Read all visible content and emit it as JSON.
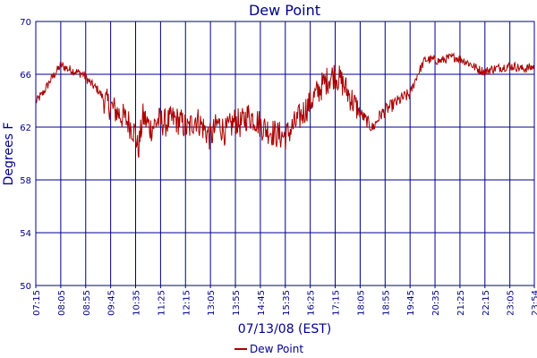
{
  "chart_data": {
    "type": "line",
    "title": "Dew Point",
    "xlabel": "07/13/08 (EST)",
    "ylabel": "Degrees F",
    "ylim": [
      50,
      70
    ],
    "yticks": [
      "50",
      "54",
      "58",
      "62",
      "66",
      "70"
    ],
    "xlim": [
      "07:15",
      "23:54"
    ],
    "xticks": [
      "07:15",
      "08:05",
      "08:55",
      "09:45",
      "10:35",
      "11:25",
      "12:15",
      "13:05",
      "13:55",
      "14:45",
      "15:35",
      "16:25",
      "17:15",
      "18:05",
      "18:55",
      "19:45",
      "20:35",
      "21:25",
      "22:15",
      "23:05",
      "23:54"
    ],
    "grid": true,
    "legend": "bottom-center",
    "colors": {
      "series": "#aa0000",
      "grid": "#00008b",
      "frame": "#00008b",
      "text": "#00008b"
    },
    "series": [
      {
        "name": "Dew Point",
        "x": [
          "07:15",
          "07:30",
          "07:45",
          "08:00",
          "08:05",
          "08:20",
          "08:35",
          "08:50",
          "09:05",
          "09:20",
          "09:35",
          "09:50",
          "10:05",
          "10:20",
          "10:35",
          "10:40",
          "10:50",
          "11:05",
          "11:20",
          "11:35",
          "11:50",
          "12:05",
          "12:20",
          "12:35",
          "12:50",
          "13:05",
          "13:20",
          "13:35",
          "13:55",
          "14:05",
          "14:20",
          "14:35",
          "14:50",
          "15:05",
          "15:20",
          "15:35",
          "15:50",
          "16:05",
          "16:20",
          "16:35",
          "16:50",
          "17:05",
          "17:15",
          "17:30",
          "17:45",
          "18:00",
          "18:15",
          "18:30",
          "18:45",
          "19:00",
          "19:15",
          "19:30",
          "19:45",
          "20:00",
          "20:15",
          "20:30",
          "20:45",
          "21:00",
          "21:15",
          "21:30",
          "21:45",
          "22:00",
          "22:15",
          "22:30",
          "22:45",
          "23:00",
          "23:15",
          "23:30",
          "23:45",
          "23:54"
        ],
        "values": [
          63.9,
          64.6,
          65.6,
          66.4,
          66.7,
          66.4,
          66.2,
          66.0,
          65.3,
          64.8,
          63.9,
          63.4,
          62.9,
          62.4,
          61.5,
          60.2,
          62.8,
          61.9,
          62.5,
          62.3,
          62.6,
          62.4,
          61.8,
          62.7,
          62.0,
          61.2,
          62.3,
          61.6,
          62.5,
          62.2,
          62.9,
          62.6,
          62.0,
          61.7,
          61.4,
          61.3,
          62.0,
          62.8,
          63.6,
          64.4,
          65.2,
          65.8,
          66.0,
          65.3,
          64.3,
          63.3,
          62.6,
          61.9,
          62.9,
          63.4,
          63.8,
          64.2,
          64.5,
          66.0,
          67.1,
          67.1,
          67.0,
          67.2,
          67.3,
          67.1,
          66.8,
          66.4,
          66.2,
          66.4,
          66.5,
          66.6,
          66.6,
          66.4,
          66.5,
          66.6
        ]
      }
    ]
  }
}
